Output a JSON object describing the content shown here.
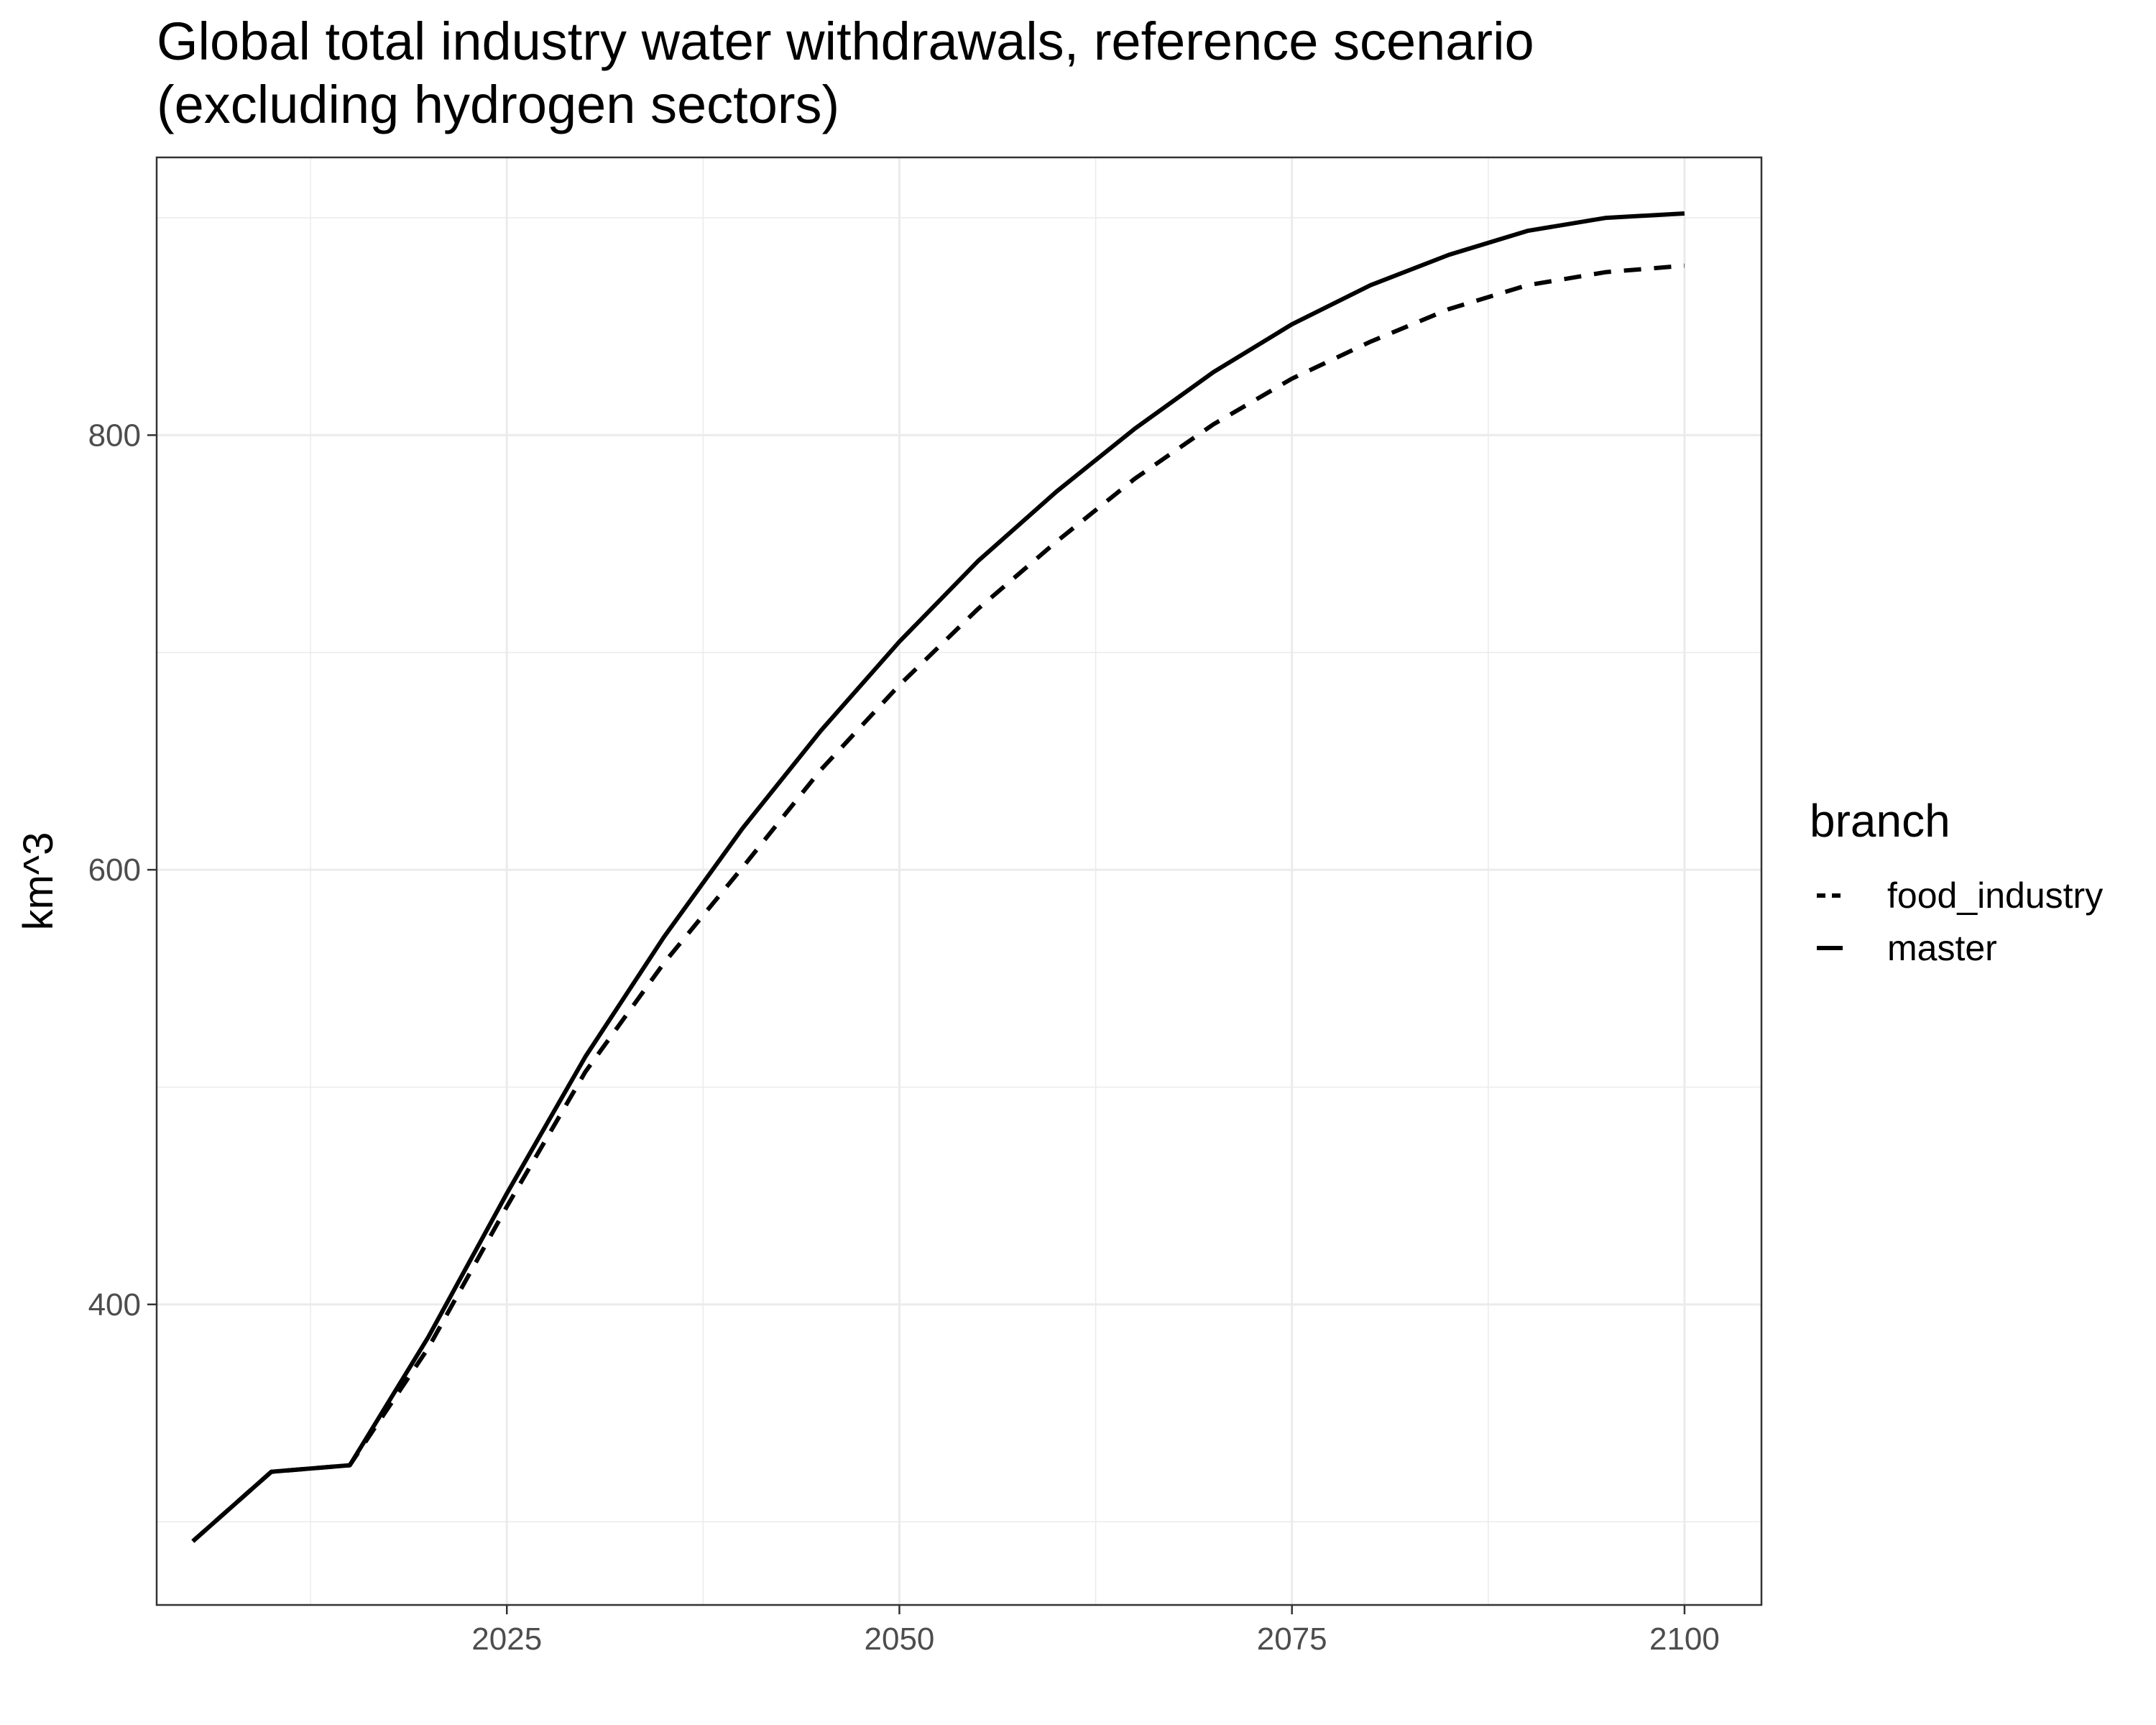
{
  "chart_data": {
    "type": "line",
    "title": "Global total industry water withdrawals, reference scenario",
    "subtitle": "(excluding hydrogen sectors)",
    "xlabel": "",
    "ylabel": "km^3",
    "xlim": [
      2002.7,
      2104.9
    ],
    "ylim": [
      261.7,
      927.8
    ],
    "x_ticks": [
      2025,
      2050,
      2075,
      2100
    ],
    "x_tick_labels": [
      "2025",
      "2050",
      "2075",
      "2100"
    ],
    "y_ticks": [
      400,
      600,
      800
    ],
    "y_tick_labels": [
      "400",
      "600",
      "800"
    ],
    "x_minor_ticks": [
      2012.5,
      2037.5,
      2062.5,
      2087.5
    ],
    "y_minor_ticks": [
      300,
      500,
      700,
      900
    ],
    "grid": true,
    "legend": {
      "title": "branch",
      "position": "right",
      "entries": [
        "food_industry",
        "master"
      ]
    },
    "x": [
      2005,
      2010,
      2015,
      2020,
      2025,
      2030,
      2035,
      2040,
      2045,
      2050,
      2055,
      2060,
      2065,
      2070,
      2075,
      2080,
      2085,
      2090,
      2095,
      2100
    ],
    "series": [
      {
        "name": "food_industry",
        "line_style": "dashed",
        "values": [
          291,
          323,
          326,
          380,
          445,
          507,
          557,
          601,
          646,
          685,
          720,
          751,
          780,
          805,
          826,
          843,
          858,
          869,
          875,
          878
        ]
      },
      {
        "name": "master",
        "line_style": "solid",
        "values": [
          291,
          323,
          326,
          385,
          451,
          514,
          569,
          619,
          664,
          705,
          742,
          774,
          803,
          829,
          851,
          869,
          883,
          894,
          900,
          902
        ]
      }
    ]
  }
}
